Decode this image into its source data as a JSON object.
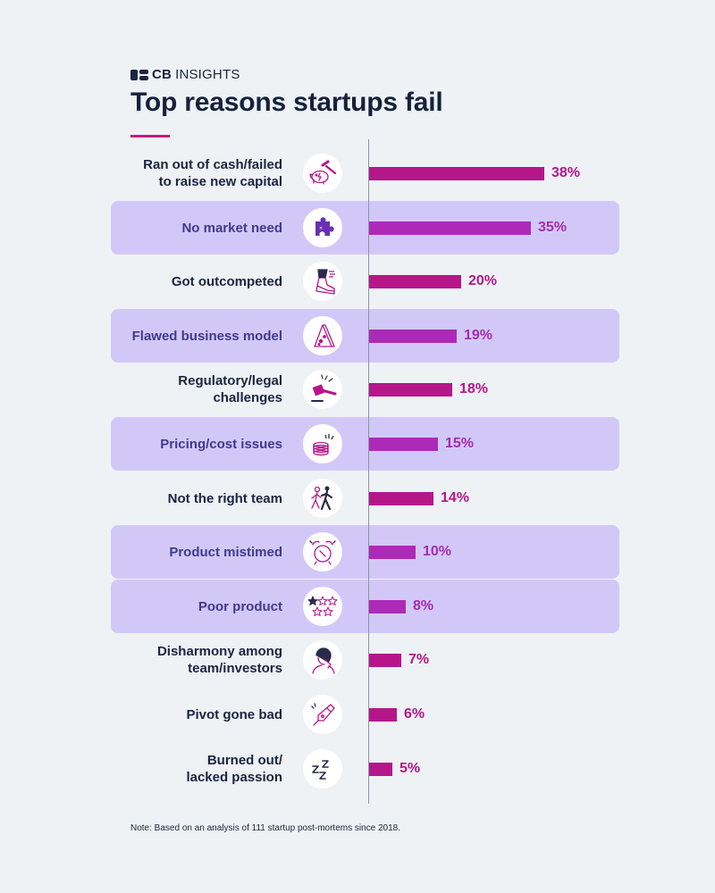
{
  "header": {
    "logo_cb": "CB",
    "logo_insights": "INSIGHTS",
    "title": "Top reasons startups fail"
  },
  "colors": {
    "bar_primary": "#b5178a",
    "bar_alt": "#ad2ab8",
    "value_primary": "#b5178a",
    "value_alt": "#a52ab0",
    "band": "#d2c8f8",
    "background": "#eef2f5"
  },
  "chart_data": {
    "type": "bar",
    "orientation": "horizontal",
    "title": "Top reasons startups fail",
    "xlabel": "",
    "ylabel": "",
    "xlim": [
      0,
      38
    ],
    "grid": false,
    "categories": [
      "Ran out of cash/failed to raise new capital",
      "No market need",
      "Got outcompeted",
      "Flawed business model",
      "Regulatory/legal challenges",
      "Pricing/cost issues",
      "Not the right team",
      "Product mistimed",
      "Poor product",
      "Disharmony among team/investors",
      "Pivot gone bad",
      "Burned out/ lacked passion"
    ],
    "values": [
      38,
      35,
      20,
      19,
      18,
      15,
      14,
      10,
      8,
      7,
      6,
      5
    ],
    "value_labels": [
      "38%",
      "35%",
      "20%",
      "19%",
      "18%",
      "15%",
      "14%",
      "10%",
      "8%",
      "7%",
      "6%",
      "5%"
    ],
    "label_lines": [
      [
        "Ran out of cash/failed",
        "to raise new capital"
      ],
      [
        "No market need"
      ],
      [
        "Got outcompeted"
      ],
      [
        "Flawed business model"
      ],
      [
        "Regulatory/legal",
        "challenges"
      ],
      [
        "Pricing/cost issues"
      ],
      [
        "Not the right team"
      ],
      [
        "Product mistimed"
      ],
      [
        "Poor product"
      ],
      [
        "Disharmony among",
        "team/investors"
      ],
      [
        "Pivot gone bad"
      ],
      [
        "Burned out/",
        "lacked passion"
      ]
    ],
    "highlighted": [
      false,
      true,
      false,
      true,
      false,
      true,
      false,
      true,
      true,
      false,
      false,
      false
    ],
    "icons": [
      "piggy-bank-hammer-icon",
      "puzzle-piece-icon",
      "running-shoe-icon",
      "cheese-wedge-icon",
      "gavel-icon",
      "coin-stack-icon",
      "people-walking-icon",
      "alarm-clock-icon",
      "star-rating-icon",
      "frustrated-person-icon",
      "pen-nib-icon",
      "zzz-sleep-icon"
    ]
  },
  "footer": {
    "note": "Note: Based on an analysis of 111 startup post-mortems since 2018."
  }
}
